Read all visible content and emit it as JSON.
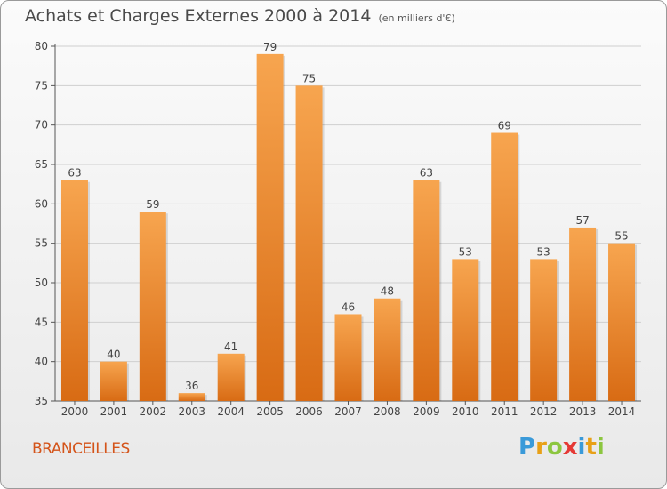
{
  "header": {
    "title": "Achats et Charges Externes 2000 à 2014",
    "unit": "(en milliers d'€)"
  },
  "footer": {
    "commune": "BRANCEILLES",
    "logo": {
      "letters": [
        "P",
        "r",
        "o",
        "x",
        "i",
        "t",
        "i"
      ],
      "colors": [
        "#3a9ad9",
        "#e8a017",
        "#8cc63f",
        "#e53935",
        "#3a9ad9",
        "#e8a017",
        "#8cc63f"
      ]
    }
  },
  "chart_data": {
    "type": "bar",
    "categories": [
      "2000",
      "2001",
      "2002",
      "2003",
      "2004",
      "2005",
      "2006",
      "2007",
      "2008",
      "2009",
      "2010",
      "2011",
      "2012",
      "2013",
      "2014"
    ],
    "values": [
      63,
      40,
      59,
      36,
      41,
      79,
      75,
      46,
      48,
      63,
      53,
      69,
      53,
      57,
      55
    ],
    "ylim": [
      35,
      80
    ],
    "yticks": [
      35,
      40,
      45,
      50,
      55,
      60,
      65,
      70,
      75,
      80
    ],
    "grid": true,
    "bar_color_top": "#f7a54f",
    "bar_color_bottom": "#d86b14"
  }
}
